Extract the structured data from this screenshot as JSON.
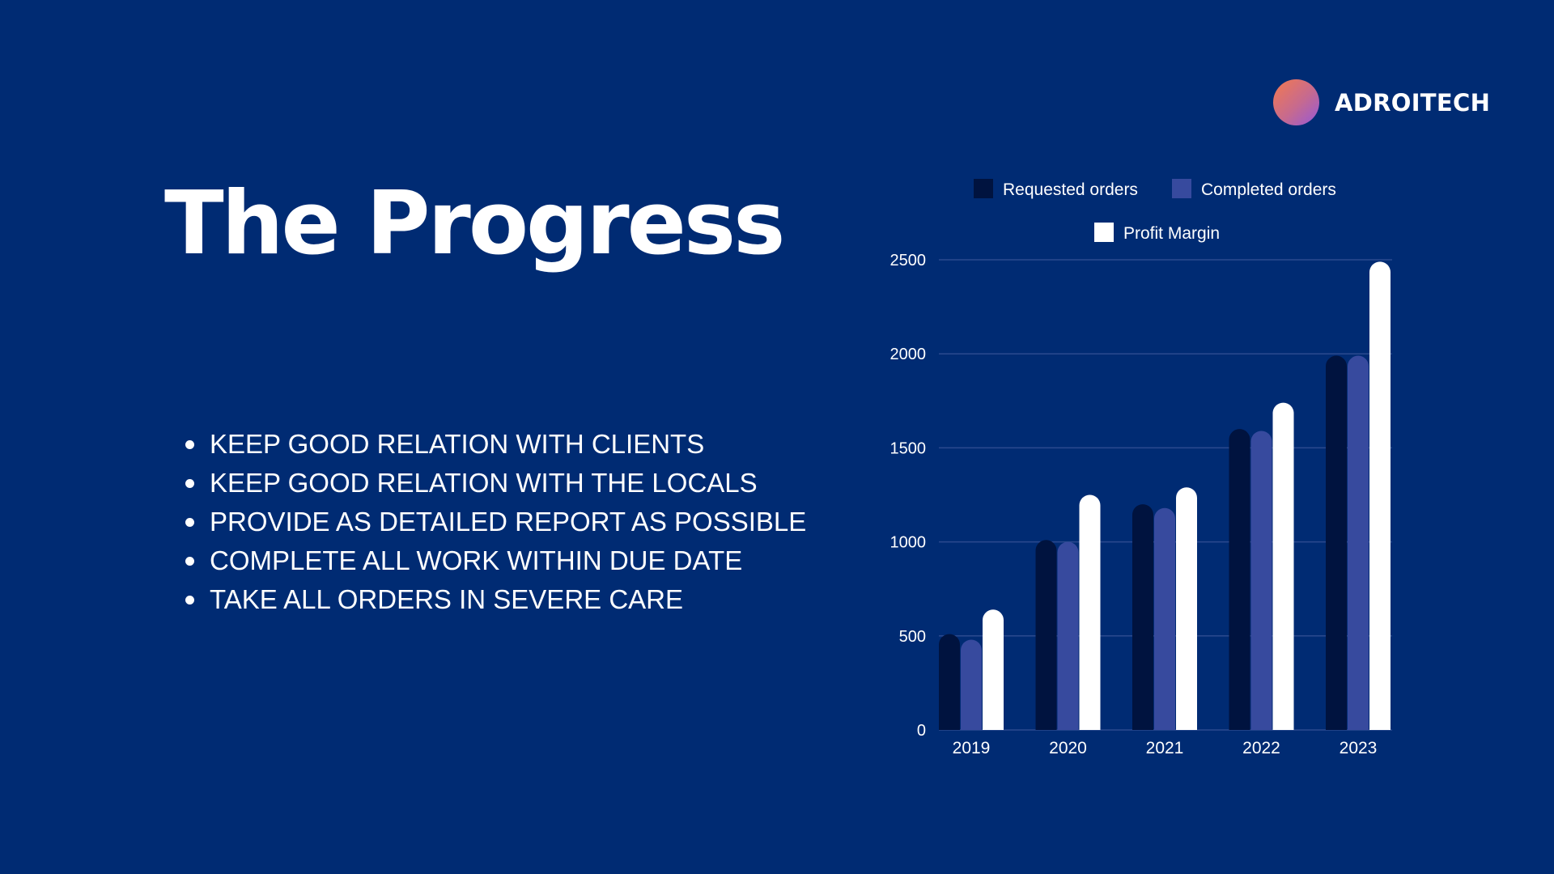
{
  "brand": {
    "name": "ADROITECH"
  },
  "title": "The Progress",
  "bullets": [
    "KEEP GOOD RELATION WITH CLIENTS",
    "KEEP GOOD RELATION WITH THE LOCALS",
    "PROVIDE AS DETAILED REPORT AS POSSIBLE",
    "COMPLETE ALL WORK WITHIN DUE DATE",
    "TAKE ALL ORDERS IN SEVERE CARE"
  ],
  "colors": {
    "background": "#002B73",
    "series": [
      "#00133F",
      "#374A9E",
      "#FFFFFF"
    ],
    "grid": "#2B4A8F"
  },
  "chart_data": {
    "type": "bar",
    "categories": [
      "2019",
      "2020",
      "2021",
      "2022",
      "2023"
    ],
    "series": [
      {
        "name": "Requested orders",
        "values": [
          510,
          1010,
          1200,
          1600,
          1990
        ]
      },
      {
        "name": "Completed orders",
        "values": [
          480,
          1000,
          1180,
          1590,
          1990
        ]
      },
      {
        "name": "Profit Margin",
        "values": [
          640,
          1250,
          1290,
          1740,
          2490
        ]
      }
    ],
    "ylim": [
      0,
      2500
    ],
    "yticks": [
      "0",
      "500",
      "1000",
      "1500",
      "2000",
      "2500"
    ],
    "grid": true,
    "legend": "top"
  }
}
